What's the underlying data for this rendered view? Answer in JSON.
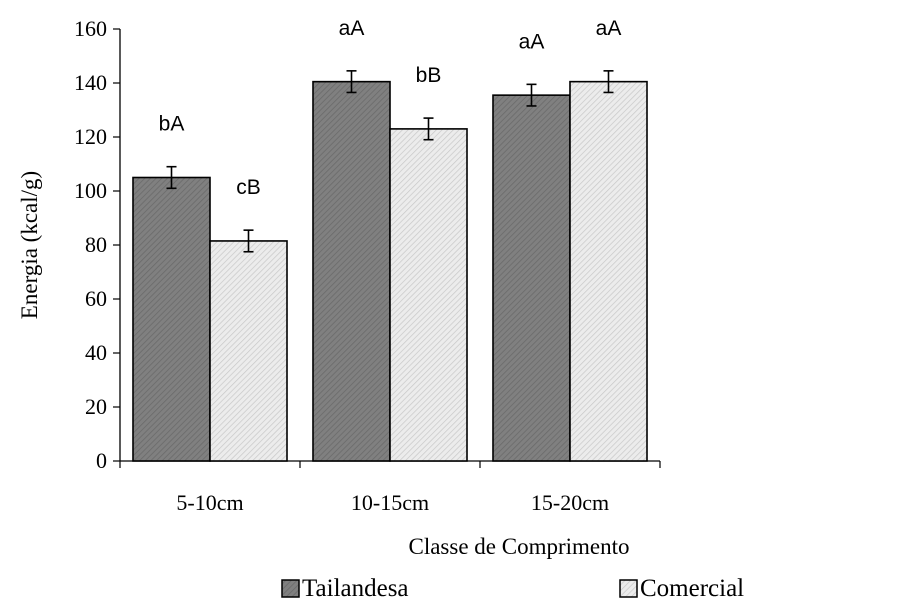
{
  "chart_data": {
    "type": "bar",
    "title": "",
    "xlabel": "Classe de Comprimento",
    "ylabel": "Energia (kcal/g)",
    "ylim": [
      0,
      160
    ],
    "yticks": [
      0,
      20,
      40,
      60,
      80,
      100,
      120,
      140,
      160
    ],
    "categories": [
      "5-10cm",
      "10-15cm",
      "15-20cm"
    ],
    "series": [
      {
        "name": "Tailandesa",
        "values": [
          105,
          140.5,
          135.5
        ],
        "errors": [
          4,
          4,
          4
        ],
        "labels": [
          "bA",
          "aA",
          "aA"
        ],
        "color": "#7f7f7f"
      },
      {
        "name": "Comercial",
        "values": [
          81.5,
          123,
          140.5
        ],
        "errors": [
          4,
          4,
          4
        ],
        "labels": [
          "cB",
          "bB",
          "aA"
        ],
        "color": "#e6e6e6"
      }
    ],
    "grid": false,
    "legend_position": "bottom"
  }
}
